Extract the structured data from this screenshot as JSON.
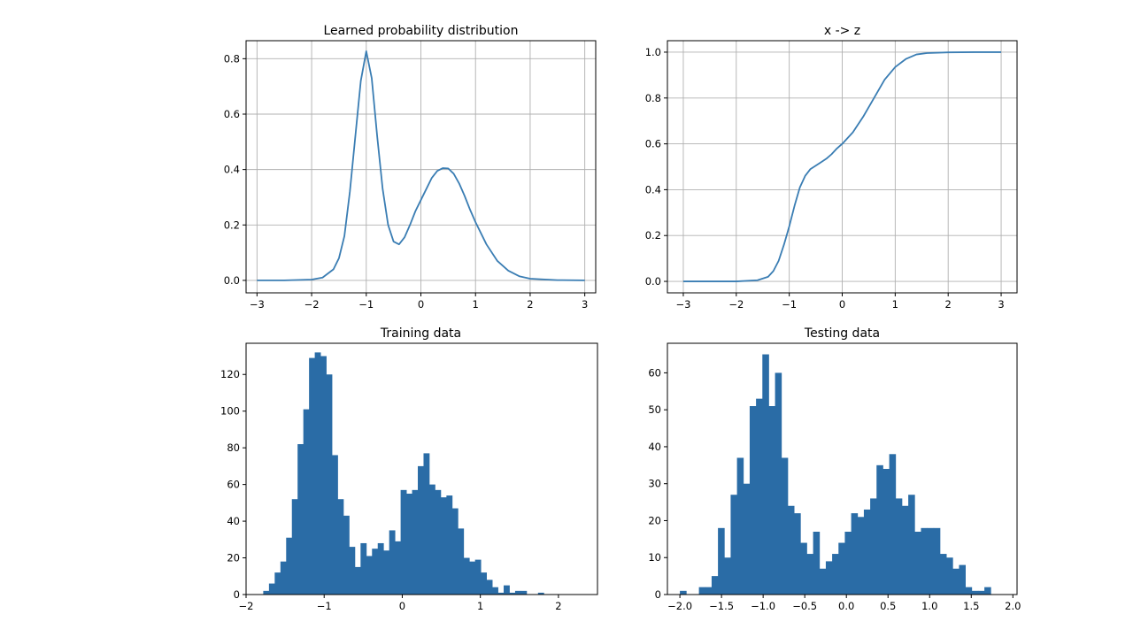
{
  "figure": {
    "background": "#ffffff",
    "line_color": "#3a7db3",
    "bar_color": "#2a6ca6",
    "grid_color": "#b0b0b0"
  },
  "chart_data": [
    {
      "id": "pdf",
      "type": "line",
      "title": "Learned probability distribution",
      "xlabel": "",
      "ylabel": "",
      "xlim": [
        -3.2,
        3.2
      ],
      "ylim": [
        -0.045,
        0.865
      ],
      "xticks": [
        -3,
        -2,
        -1,
        0,
        1,
        2,
        3
      ],
      "xtick_labels": [
        "−3",
        "−2",
        "−1",
        "0",
        "1",
        "2",
        "3"
      ],
      "yticks": [
        0.0,
        0.2,
        0.4,
        0.6,
        0.8
      ],
      "ytick_labels": [
        "0.0",
        "0.2",
        "0.4",
        "0.6",
        "0.8"
      ],
      "grid": true,
      "series": [
        {
          "x": [
            -3.0,
            -2.5,
            -2.0,
            -1.8,
            -1.6,
            -1.5,
            -1.4,
            -1.3,
            -1.2,
            -1.1,
            -1.0,
            -0.9,
            -0.8,
            -0.7,
            -0.6,
            -0.5,
            -0.4,
            -0.3,
            -0.2,
            -0.1,
            0.0,
            0.1,
            0.2,
            0.3,
            0.4,
            0.5,
            0.6,
            0.7,
            0.8,
            0.9,
            1.0,
            1.2,
            1.4,
            1.6,
            1.8,
            2.0,
            2.5,
            3.0
          ],
          "y": [
            0.0,
            0.0,
            0.003,
            0.01,
            0.04,
            0.08,
            0.16,
            0.32,
            0.52,
            0.72,
            0.827,
            0.73,
            0.52,
            0.33,
            0.2,
            0.14,
            0.13,
            0.155,
            0.2,
            0.25,
            0.29,
            0.33,
            0.37,
            0.395,
            0.405,
            0.404,
            0.385,
            0.35,
            0.305,
            0.255,
            0.21,
            0.13,
            0.07,
            0.035,
            0.015,
            0.006,
            0.001,
            0.0
          ]
        }
      ]
    },
    {
      "id": "cdf",
      "type": "line",
      "title": "x -> z",
      "xlabel": "",
      "ylabel": "",
      "xlim": [
        -3.3,
        3.3
      ],
      "ylim": [
        -0.05,
        1.05
      ],
      "xticks": [
        -3,
        -2,
        -1,
        0,
        1,
        2,
        3
      ],
      "xtick_labels": [
        "−3",
        "−2",
        "−1",
        "0",
        "1",
        "2",
        "3"
      ],
      "yticks": [
        0.0,
        0.2,
        0.4,
        0.6,
        0.8,
        1.0
      ],
      "ytick_labels": [
        "0.0",
        "0.2",
        "0.4",
        "0.6",
        "0.8",
        "1.0"
      ],
      "grid": true,
      "series": [
        {
          "x": [
            -3.0,
            -2.5,
            -2.0,
            -1.6,
            -1.4,
            -1.3,
            -1.2,
            -1.1,
            -1.0,
            -0.9,
            -0.8,
            -0.7,
            -0.6,
            -0.5,
            -0.4,
            -0.3,
            -0.2,
            -0.1,
            0.0,
            0.2,
            0.4,
            0.6,
            0.8,
            1.0,
            1.2,
            1.4,
            1.6,
            2.0,
            2.5,
            3.0
          ],
          "y": [
            0.0,
            0.0,
            0.0,
            0.005,
            0.02,
            0.045,
            0.09,
            0.16,
            0.24,
            0.33,
            0.41,
            0.46,
            0.49,
            0.505,
            0.52,
            0.535,
            0.555,
            0.58,
            0.6,
            0.65,
            0.72,
            0.8,
            0.88,
            0.935,
            0.97,
            0.99,
            0.996,
            0.999,
            1.0,
            1.0
          ]
        }
      ]
    },
    {
      "id": "train",
      "type": "bar",
      "title": "Training data",
      "xlabel": "",
      "ylabel": "",
      "xlim": [
        -2.0,
        2.5
      ],
      "ylim": [
        0,
        137
      ],
      "xticks": [
        -2,
        -1,
        0,
        1,
        2
      ],
      "xtick_labels": [
        "−2",
        "−1",
        "0",
        "1",
        "2"
      ],
      "yticks": [
        0,
        20,
        40,
        60,
        80,
        100,
        120
      ],
      "ytick_labels": [
        "0",
        "20",
        "40",
        "60",
        "80",
        "100",
        "120"
      ],
      "grid": false,
      "bin_start": -1.78,
      "bin_width": 0.0733,
      "values": [
        2,
        6,
        12,
        18,
        31,
        52,
        82,
        101,
        129,
        132,
        130,
        120,
        76,
        52,
        43,
        26,
        15,
        28,
        21,
        25,
        28,
        24,
        35,
        29,
        57,
        55,
        57,
        70,
        77,
        60,
        57,
        53,
        54,
        47,
        36,
        20,
        18,
        19,
        12,
        8,
        4,
        1,
        5,
        1,
        2,
        2,
        0,
        0,
        1
      ]
    },
    {
      "id": "test",
      "type": "bar",
      "title": "Testing data",
      "xlabel": "",
      "ylabel": "",
      "xlim": [
        -2.15,
        2.05
      ],
      "ylim": [
        0,
        68
      ],
      "xticks": [
        -2.0,
        -1.5,
        -1.0,
        -0.5,
        0.0,
        0.5,
        1.0,
        1.5,
        2.0
      ],
      "xtick_labels": [
        "−2.0",
        "−1.5",
        "−1.0",
        "−0.5",
        "0.0",
        "0.5",
        "1.0",
        "1.5",
        "2.0"
      ],
      "yticks": [
        0,
        10,
        20,
        30,
        40,
        50,
        60
      ],
      "ytick_labels": [
        "0",
        "10",
        "20",
        "30",
        "40",
        "50",
        "60"
      ],
      "grid": false,
      "bin_start": -2.0,
      "bin_width": 0.0762,
      "values": [
        1,
        0,
        0,
        2,
        2,
        5,
        18,
        10,
        27,
        37,
        30,
        51,
        53,
        65,
        51,
        60,
        37,
        24,
        22,
        14,
        11,
        17,
        7,
        9,
        11,
        14,
        17,
        22,
        21,
        23,
        26,
        35,
        34,
        38,
        26,
        24,
        27,
        17,
        18,
        18,
        18,
        11,
        10,
        7,
        8,
        2,
        1,
        1,
        2
      ]
    }
  ]
}
